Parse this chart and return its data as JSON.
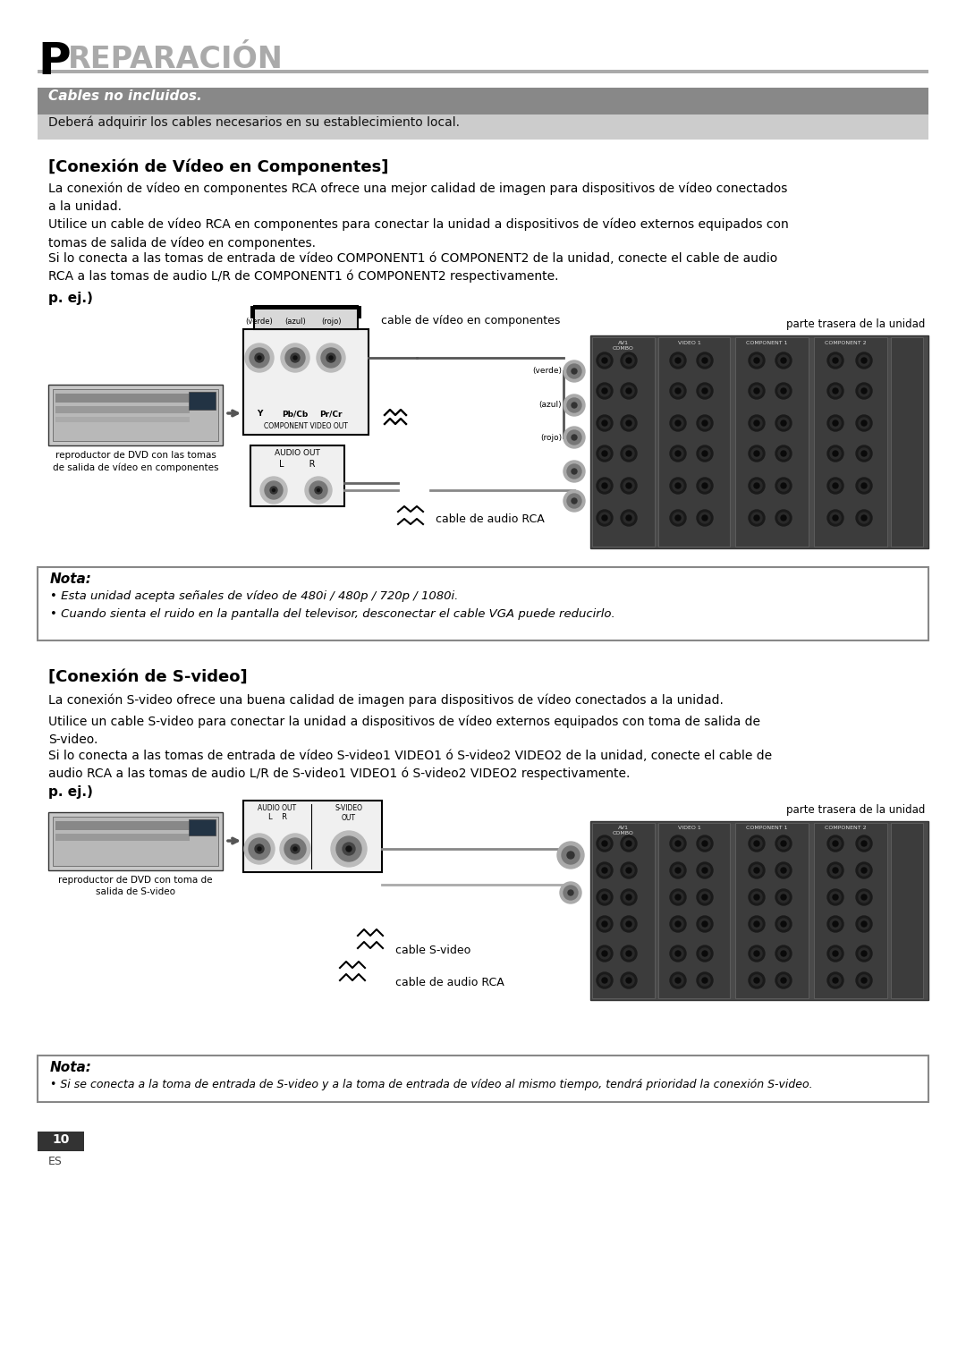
{
  "page_bg": "#ffffff",
  "header_P": "P",
  "header_rest": "REPARACIÓN",
  "header_line_color": "#aaaaaa",
  "cables_banner_bg": "#888888",
  "cables_banner_text": "Cables no incluidos.",
  "cables_sub_bg": "#cccccc",
  "cables_sub_text": "Deberá adquirir los cables necesarios en su establecimiento local.",
  "section1_title": "[Conexión de Vídeo en Componentes]",
  "section1_para1": "La conexión de vídeo en componentes RCA ofrece una mejor calidad de imagen para dispositivos de vídeo conectados\na la unidad.",
  "section1_para2": "Utilice un cable de vídeo RCA en componentes para conectar la unidad a dispositivos de vídeo externos equipados con\ntomas de salida de vídeo en componentes.",
  "section1_para3": "Si lo conecta a las tomas de entrada de vídeo COMPONENT1 ó COMPONENT2 de la unidad, conecte el cable de audio\nRCA a las tomas de audio L/R de COMPONENT1 ó COMPONENT2 respectivamente.",
  "section1_pej": "p. ej.)",
  "diagram1_cable_label": "cable de vídeo en componentes",
  "diagram1_comp_label": "COMPONENT VIDEO OUT",
  "diagram1_audio_label": "AUDIO OUT",
  "diagram1_lr_label": "L         R",
  "diagram1_dvd_label1": "reproductor de DVD con las tomas",
  "diagram1_dvd_label2": "de salida de vídeo en componentes",
  "diagram1_parte_label": "parte trasera de la unidad",
  "diagram1_verde": "(verde)",
  "diagram1_azul": "(azul)",
  "diagram1_rojo": "(rojo)",
  "diagram1_audio_rca_label": "cable de audio RCA",
  "nota1_title": "Nota:",
  "nota1_bullet1": "• Esta unidad acepta señales de vídeo de 480i / 480p / 720p / 1080i.",
  "nota1_bullet2": "• Cuando sienta el ruido en la pantalla del televisor, desconectar el cable VGA puede reducirlo.",
  "section2_title": "[Conexión de S-video]",
  "section2_para1": "La conexión S-video ofrece una buena calidad de imagen para dispositivos de vídeo conectados a la unidad.",
  "section2_para2": "Utilice un cable S-video para conectar la unidad a dispositivos de vídeo externos equipados con toma de salida de\nS-video.",
  "section2_para3": "Si lo conecta a las tomas de entrada de vídeo S-video1 VIDEO1 ó S-video2 VIDEO2 de la unidad, conecte el cable de\naudio RCA a las tomas de audio L/R de S-video1 VIDEO1 ó S-video2 VIDEO2 respectivamente.",
  "section2_pej": "p. ej.)",
  "diagram2_audio_label": "AUDIO OUT",
  "diagram2_svideo_out": "S-VIDEO\nOUT",
  "diagram2_lr_label": "L    R",
  "diagram2_dvd_label1": "reproductor de DVD con toma de",
  "diagram2_dvd_label2": "salida de S-video",
  "diagram2_cable_svideo": "cable S-video",
  "diagram2_cable_audio": "cable de audio RCA",
  "diagram2_parte_label": "parte trasera de la unidad",
  "nota2_title": "Nota:",
  "nota2_bullet": "• Si se conecta a la toma de entrada de S-video y a la toma de entrada de vídeo al mismo tiempo, tendrá prioridad la conexión S-video.",
  "footer_number": "10",
  "footer_lang": "ES"
}
